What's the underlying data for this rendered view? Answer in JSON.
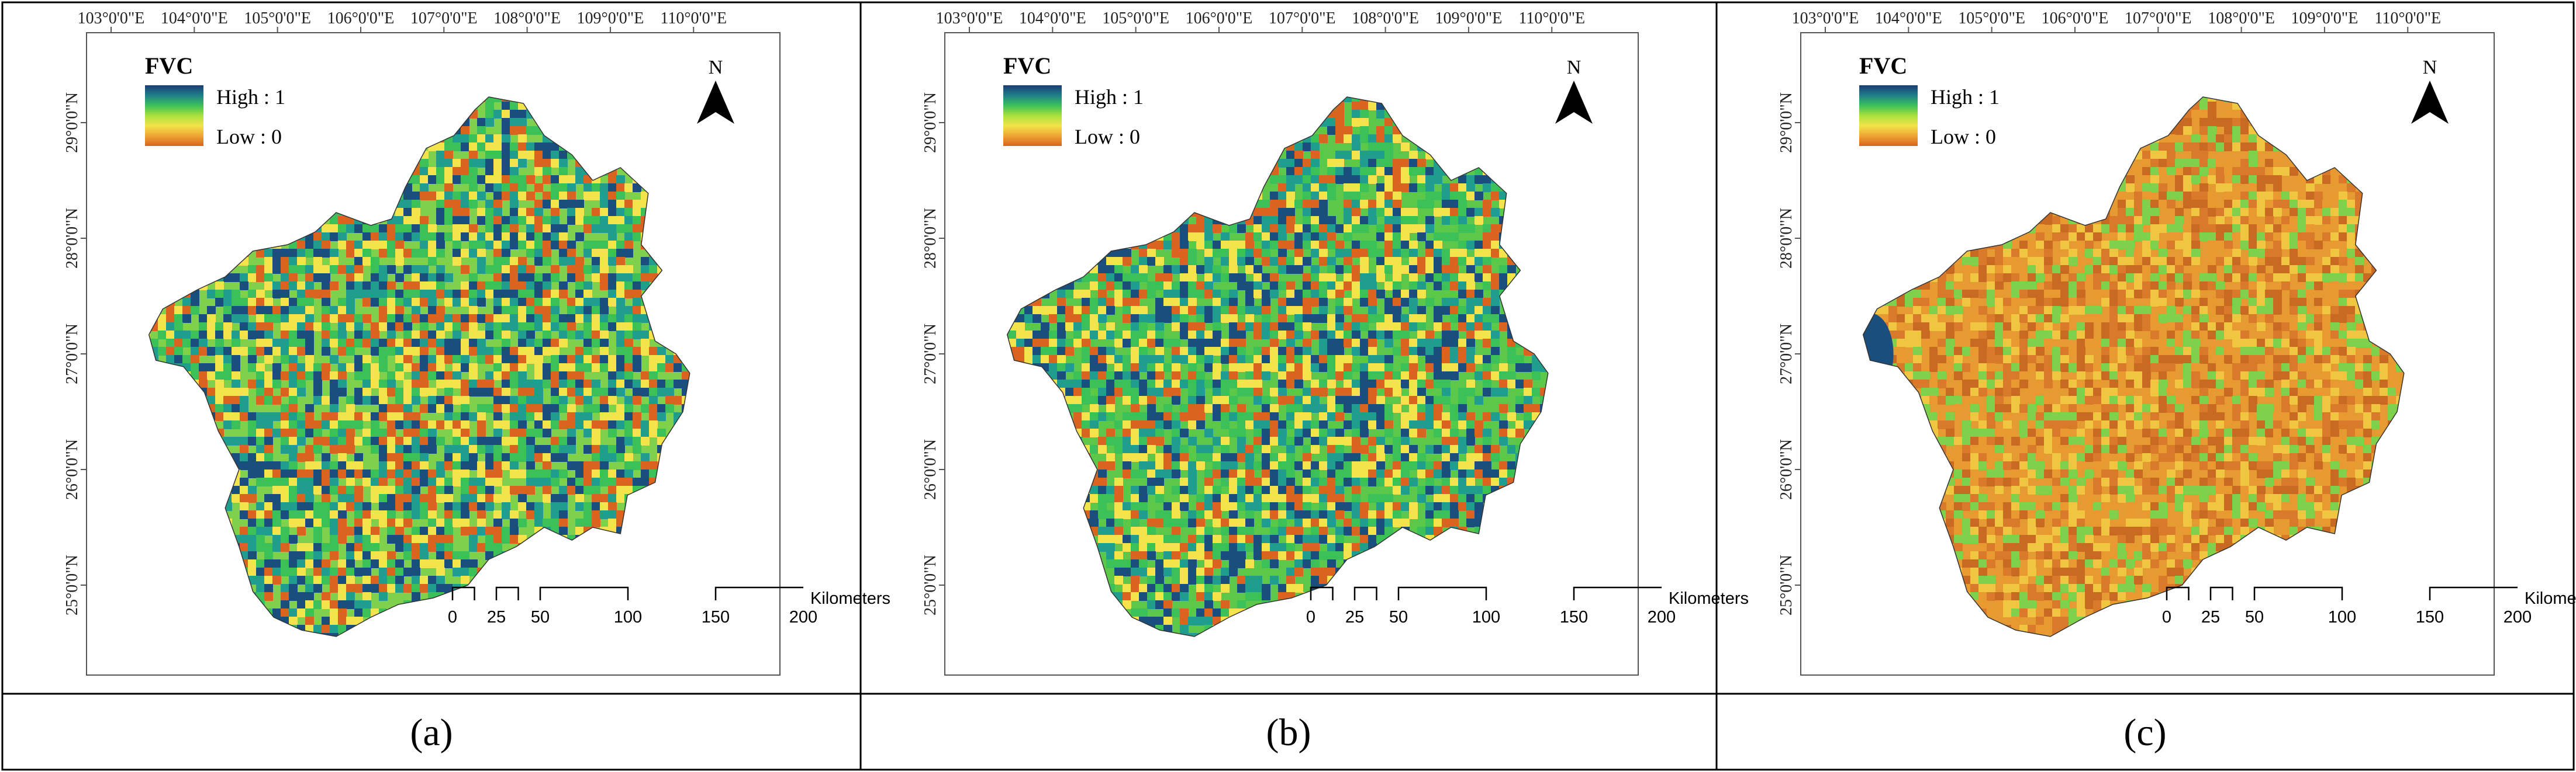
{
  "legend": {
    "title": "FVC",
    "high_label": "High : 1",
    "low_label": "Low : 0",
    "colors": [
      "#1a3e72",
      "#1f7f8b",
      "#3cc159",
      "#a8e13c",
      "#f2e44a",
      "#f0a433",
      "#d8641f"
    ]
  },
  "north_label": "N",
  "lon_labels": [
    "103°0'0\"E",
    "104°0'0\"E",
    "105°0'0\"E",
    "106°0'0\"E",
    "107°0'0\"E",
    "108°0'0\"E",
    "109°0'0\"E",
    "110°0'0\"E"
  ],
  "lat_labels": [
    "29°0'0\"N",
    "28°0'0\"N",
    "27°0'0\"N",
    "26°0'0\"N",
    "25°0'0\"N"
  ],
  "scale_bar": {
    "ticks": [
      "0",
      "25",
      "50",
      "100",
      "150",
      "200"
    ],
    "unit": "Kilometers"
  },
  "panels": [
    {
      "caption": "(a)",
      "letter": "a",
      "palette": [
        "#d8641f",
        "#f2e44a",
        "#3cc159",
        "#1f9e8e",
        "#1a4e7c"
      ],
      "base": "#7fd04a"
    },
    {
      "caption": "(b)",
      "letter": "b",
      "palette": [
        "#d8641f",
        "#f2e44a",
        "#3cc159",
        "#1f9e8e",
        "#1a4e7c"
      ],
      "base": "#5cc84a"
    },
    {
      "caption": "(c)",
      "letter": "c",
      "palette": [
        "#d97a2b",
        "#e89a30",
        "#c96a22",
        "#f0c640",
        "#7fd04a"
      ],
      "base": "#e59a32"
    }
  ]
}
